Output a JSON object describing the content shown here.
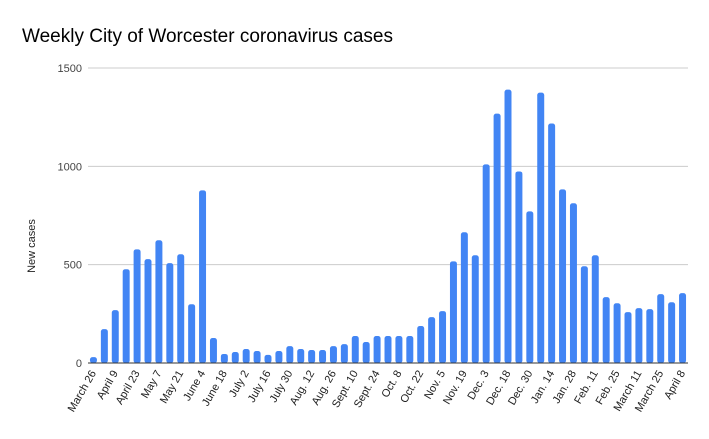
{
  "chart_data": {
    "type": "bar",
    "title": "Weekly City of Worcester coronavirus cases",
    "xlabel": "",
    "ylabel": "New cases",
    "ylim": [
      0,
      1500
    ],
    "yticks": [
      0,
      500,
      1000,
      1500
    ],
    "grid": true,
    "color": "#4285f4",
    "x_tick_labels": [
      "March 26",
      "April 9",
      "April 23",
      "May 7",
      "May 21",
      "June 4",
      "June 18",
      "July 2",
      "July 16",
      "July 30",
      "Aug. 12",
      "Aug. 26",
      "Sept. 10",
      "Sept. 24",
      "Oct. 8",
      "Oct. 22",
      "Nov. 5",
      "Nov. 19",
      "Dec. 3",
      "Dec. 18",
      "Dec. 30",
      "Jan. 14",
      "Jan. 28",
      "Feb. 11",
      "Feb. 25",
      "March 11",
      "March 25",
      "April 8"
    ],
    "label_every": 2,
    "values": [
      30,
      172,
      269,
      477,
      578,
      528,
      624,
      508,
      553,
      299,
      878,
      127,
      46,
      56,
      71,
      61,
      41,
      61,
      86,
      71,
      66,
      66,
      86,
      96,
      137,
      107,
      137,
      137,
      137,
      137,
      188,
      233,
      264,
      517,
      665,
      548,
      1010,
      1268,
      1390,
      974,
      771,
      1375,
      1218,
      883,
      812,
      492,
      548,
      335,
      304,
      259,
      279,
      274,
      350,
      309,
      355
    ]
  }
}
